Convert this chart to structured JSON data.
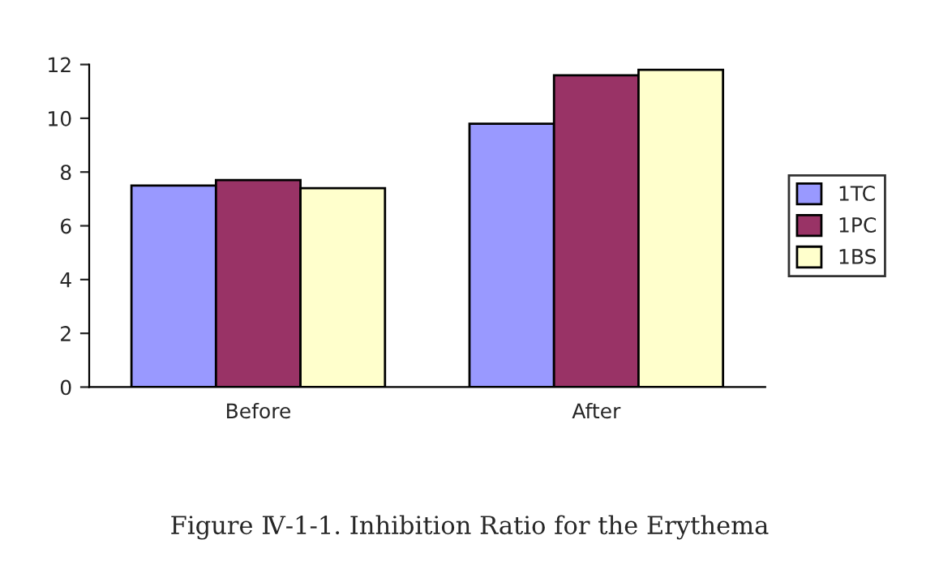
{
  "chart_data": {
    "type": "bar",
    "categories": [
      "Before",
      "After"
    ],
    "series": [
      {
        "name": "1TC",
        "color": "#9999ff",
        "values": [
          7.5,
          9.8
        ]
      },
      {
        "name": "1PC",
        "color": "#993366",
        "values": [
          7.7,
          11.6
        ]
      },
      {
        "name": "1BS",
        "color": "#ffffcc",
        "values": [
          7.4,
          11.8
        ]
      }
    ],
    "ylim": [
      0,
      12
    ],
    "yticks": [
      0,
      2,
      4,
      6,
      8,
      10,
      12
    ],
    "grid": false,
    "legend": "right",
    "annotations": [
      "Figure Ⅳ-1-1. Inhibition Ratio for the Erythema"
    ]
  }
}
